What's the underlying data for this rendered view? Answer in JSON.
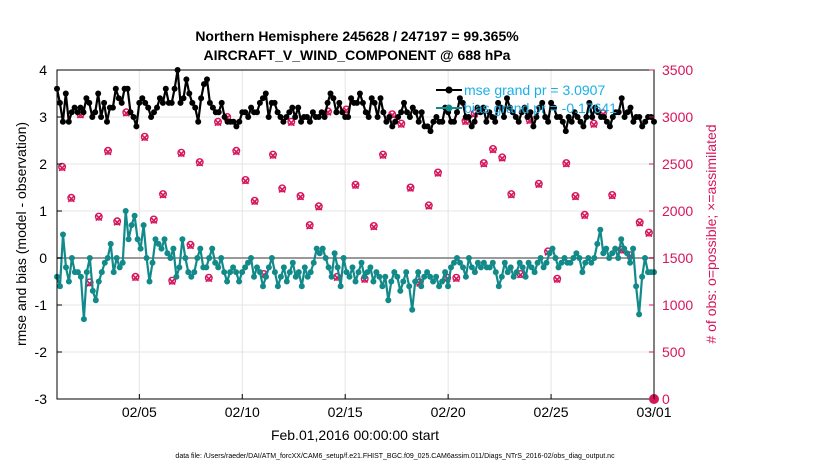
{
  "chart_data": {
    "type": "line",
    "title": [
      "Northern Hemisphere 245628 / 247197 = 99.365%",
      "AIRCRAFT_V_WIND_COMPONENT @ 688 hPa"
    ],
    "xlabel": "Feb.01,2016 00:00:00 start",
    "ylabel_left": "rmse and bias (model - observation)",
    "ylabel_right": "# of obs: o=possible; ×=assimilated",
    "xlim": [
      1,
      30
    ],
    "ylim_left": [
      -3,
      4
    ],
    "ylim_right": [
      0,
      3500
    ],
    "x_ticks": [
      5,
      10,
      15,
      20,
      25,
      30
    ],
    "x_tick_labels": [
      "02/05",
      "02/10",
      "02/15",
      "02/20",
      "02/25",
      "03/01"
    ],
    "y_ticks_left": [
      -3,
      -2,
      -1,
      0,
      1,
      2,
      3,
      4
    ],
    "y_tick_labels_left": [
      "-3",
      "-2",
      "-1",
      "0",
      "1",
      "2",
      "3",
      "4"
    ],
    "y_ticks_right": [
      0,
      500,
      1000,
      1500,
      2000,
      2500,
      3000,
      3500
    ],
    "y_tick_labels_right": [
      "0",
      "500",
      "1000",
      "1500",
      "2000",
      "2500",
      "3000",
      "3500"
    ],
    "legend": [
      {
        "name": "mse grand pr = 3.0907",
        "color": "#000000"
      },
      {
        "name": "bias grand pr = -0.17641",
        "color": "#128a8a"
      }
    ],
    "series": [
      {
        "name": "rmse",
        "color": "#000000",
        "values": [
          3.6,
          3.3,
          2.9,
          3.5,
          2.9,
          3.1,
          3.2,
          3.1,
          3.2,
          3.1,
          3.4,
          3.3,
          3.0,
          3.1,
          3.5,
          3.0,
          3.3,
          2.9,
          3.2,
          3.2,
          3.6,
          3.4,
          3.3,
          3.6,
          3.6,
          3.1,
          3.0,
          2.8,
          3.3,
          3.4,
          3.3,
          3.2,
          3.0,
          3.1,
          3.2,
          3.4,
          3.3,
          3.6,
          3.3,
          3.3,
          3.6,
          4.0,
          3.3,
          3.4,
          3.8,
          3.5,
          3.3,
          3.2,
          2.9,
          3.4,
          3.7,
          3.8,
          3.3,
          3.2,
          3.1,
          3.1,
          3.3,
          3.0,
          2.9,
          2.9,
          2.9,
          2.8,
          2.9,
          3.1,
          3.1,
          3.0,
          3.2,
          3.1,
          3.1,
          3.3,
          3.4,
          3.5,
          3.0,
          3.3,
          3.3,
          3.1,
          3.0,
          2.9,
          3.0,
          3.1,
          3.2,
          3.0,
          3.2,
          2.9,
          3.0,
          3.0,
          2.9,
          3.1,
          3.0,
          3.0,
          3.1,
          3.0,
          3.3,
          3.5,
          3.4,
          3.1,
          3.3,
          3.1,
          3.0,
          3.0,
          3.4,
          3.3,
          3.3,
          3.5,
          3.3,
          3.1,
          3.0,
          3.4,
          3.3,
          3.0,
          3.4,
          3.1,
          2.9,
          3.0,
          2.8,
          2.9,
          3.0,
          3.1,
          3.3,
          3.1,
          3.0,
          3.2,
          3.1,
          2.9,
          3.1,
          2.8,
          2.8,
          2.7,
          2.9,
          3.0,
          2.9,
          2.9,
          3.2,
          3.1,
          2.9,
          2.9,
          3.1,
          3.4,
          3.3,
          3.0,
          3.0,
          2.8,
          2.9,
          3.2,
          3.1,
          3.2,
          2.9,
          3.1,
          3.0,
          2.9,
          3.3,
          3.2,
          3.0,
          3.4,
          3.2,
          3.1,
          3.0,
          2.9,
          3.1,
          3.2,
          3.0,
          3.1,
          2.8,
          3.0,
          3.2,
          3.3,
          3.0,
          2.9,
          3.3,
          3.2,
          3.0,
          3.0,
          2.9,
          2.7,
          3.0,
          2.9,
          3.1,
          3.0,
          2.9,
          2.8,
          3.0,
          3.3,
          3.0,
          3.2,
          3.1,
          3.0,
          3.0,
          2.9,
          2.8,
          3.0,
          3.1,
          3.1,
          3.4,
          3.0,
          3.1,
          3.2,
          2.9,
          3.0,
          3.0,
          2.8,
          2.9,
          3.0,
          3.0,
          2.9
        ]
      },
      {
        "name": "bias",
        "color": "#128a8a",
        "values": [
          -0.4,
          -0.6,
          0.5,
          -0.2,
          -0.5,
          0.0,
          -0.3,
          -0.3,
          -0.4,
          -1.3,
          -0.3,
          0.0,
          -0.7,
          -0.9,
          -0.5,
          -0.3,
          -0.1,
          0.0,
          0.3,
          -0.3,
          0.0,
          -0.2,
          -0.1,
          1.0,
          0.4,
          0.7,
          0.9,
          0.4,
          0.2,
          0.7,
          0.0,
          -0.5,
          -0.1,
          0.4,
          0.3,
          0.2,
          0.4,
          0.1,
          0.0,
          0.2,
          -0.4,
          -0.2,
          0.4,
          0.0,
          -0.3,
          -0.4,
          -0.3,
          0.0,
          0.2,
          -0.2,
          -0.2,
          0.0,
          0.2,
          -0.1,
          -0.2,
          0.0,
          -0.3,
          -0.5,
          -0.3,
          -0.2,
          -0.3,
          -0.5,
          -0.3,
          -0.2,
          -0.1,
          0.0,
          -0.4,
          -0.2,
          -0.3,
          -0.6,
          -0.4,
          -0.2,
          0.0,
          -0.3,
          -0.6,
          -0.4,
          -0.2,
          -0.5,
          -0.3,
          -0.1,
          -0.4,
          -0.3,
          -0.6,
          -0.2,
          -0.4,
          -0.3,
          -0.1,
          0.2,
          0.1,
          0.2,
          0.0,
          -0.2,
          -0.4,
          0.1,
          -0.2,
          -0.6,
          0.0,
          -0.3,
          -0.4,
          -0.2,
          -0.5,
          -0.3,
          -0.1,
          -0.4,
          -0.3,
          -0.2,
          -0.5,
          -0.3,
          -0.4,
          -0.6,
          -0.4,
          -0.9,
          -0.5,
          -0.3,
          -0.4,
          -0.7,
          -0.5,
          -0.3,
          -0.6,
          -1.1,
          -0.5,
          -0.3,
          -0.6,
          -0.4,
          -0.3,
          -0.4,
          -0.5,
          -0.4,
          -0.6,
          -0.5,
          -0.3,
          -0.6,
          -0.2,
          -0.1,
          0.0,
          -0.1,
          -0.2,
          -0.4,
          0.0,
          -0.2,
          -0.3,
          -0.1,
          -0.2,
          -0.1,
          -0.2,
          -0.2,
          -0.1,
          -0.3,
          -0.6,
          -0.4,
          -0.1,
          -0.3,
          -0.2,
          -0.4,
          -0.3,
          -0.1,
          -0.2,
          -0.4,
          -0.1,
          -0.2,
          -0.3,
          -0.1,
          0.0,
          -0.2,
          -0.1,
          0.1,
          0.2,
          0.0,
          -0.2,
          -0.1,
          0.0,
          -0.1,
          -0.1,
          0.0,
          0.1,
          0.0,
          -0.3,
          -0.1,
          0.0,
          -0.1,
          0.0,
          0.3,
          0.6,
          0.1,
          0.2,
          0.0,
          0.1,
          0.2,
          0.0,
          0.4,
          0.2,
          0.1,
          -0.1,
          0.2,
          -0.6,
          -1.2,
          -0.4,
          0.0,
          -0.3,
          -0.3,
          -0.3
        ]
      },
      {
        "name": "obs possible",
        "color": "#d6165c",
        "marker": "o",
        "values": [
          2470,
          2140,
          3030,
          1240,
          1940,
          2640,
          1890,
          3050,
          1300,
          2790,
          1910,
          2180,
          1260,
          2620,
          1640,
          2520,
          1290,
          2950,
          3000,
          2640,
          2330,
          2110,
          1330,
          2600,
          2240,
          2950,
          2160,
          1850,
          2050,
          3060,
          1300,
          3080,
          2280,
          1280,
          1840,
          2600,
          3030,
          2930,
          2250,
          1240,
          2060,
          2410,
          1290,
          1290,
          2960,
          3040,
          2510,
          2660,
          2570,
          2180,
          1330,
          2970,
          2290,
          1570,
          1280,
          2510,
          2160,
          1960,
          2930,
          3040,
          2170,
          1590,
          1530,
          1880,
          1770
        ]
      },
      {
        "name": "obs assimilated",
        "color": "#d6165c",
        "marker": "x",
        "values": [
          2460,
          2130,
          3020,
          1230,
          1930,
          2630,
          1880,
          3040,
          1290,
          2780,
          1900,
          2170,
          1250,
          2610,
          1630,
          2510,
          1280,
          2940,
          2990,
          2630,
          2320,
          2100,
          1320,
          2590,
          2230,
          2940,
          2150,
          1840,
          2040,
          3050,
          1290,
          3070,
          2270,
          1270,
          1830,
          2590,
          3020,
          2920,
          2240,
          1230,
          2050,
          2400,
          1280,
          1280,
          2950,
          3030,
          2500,
          2650,
          2560,
          2170,
          1320,
          2960,
          2280,
          1560,
          1270,
          2500,
          2150,
          1950,
          2920,
          3030,
          2160,
          1580,
          1520,
          1870,
          1760
        ]
      },
      {
        "name": "obs last",
        "color": "#d6165c",
        "marker": "filled-circle",
        "values": [
          0
        ]
      }
    ]
  },
  "footnote": "data file: /Users/raeder/DAI/ATM_forcXX/CAM6_setup/f.e21.FHIST_BGC.f09_025.CAM6assim.011/Diags_NTrS_2016-02/obs_diag_output.nc"
}
